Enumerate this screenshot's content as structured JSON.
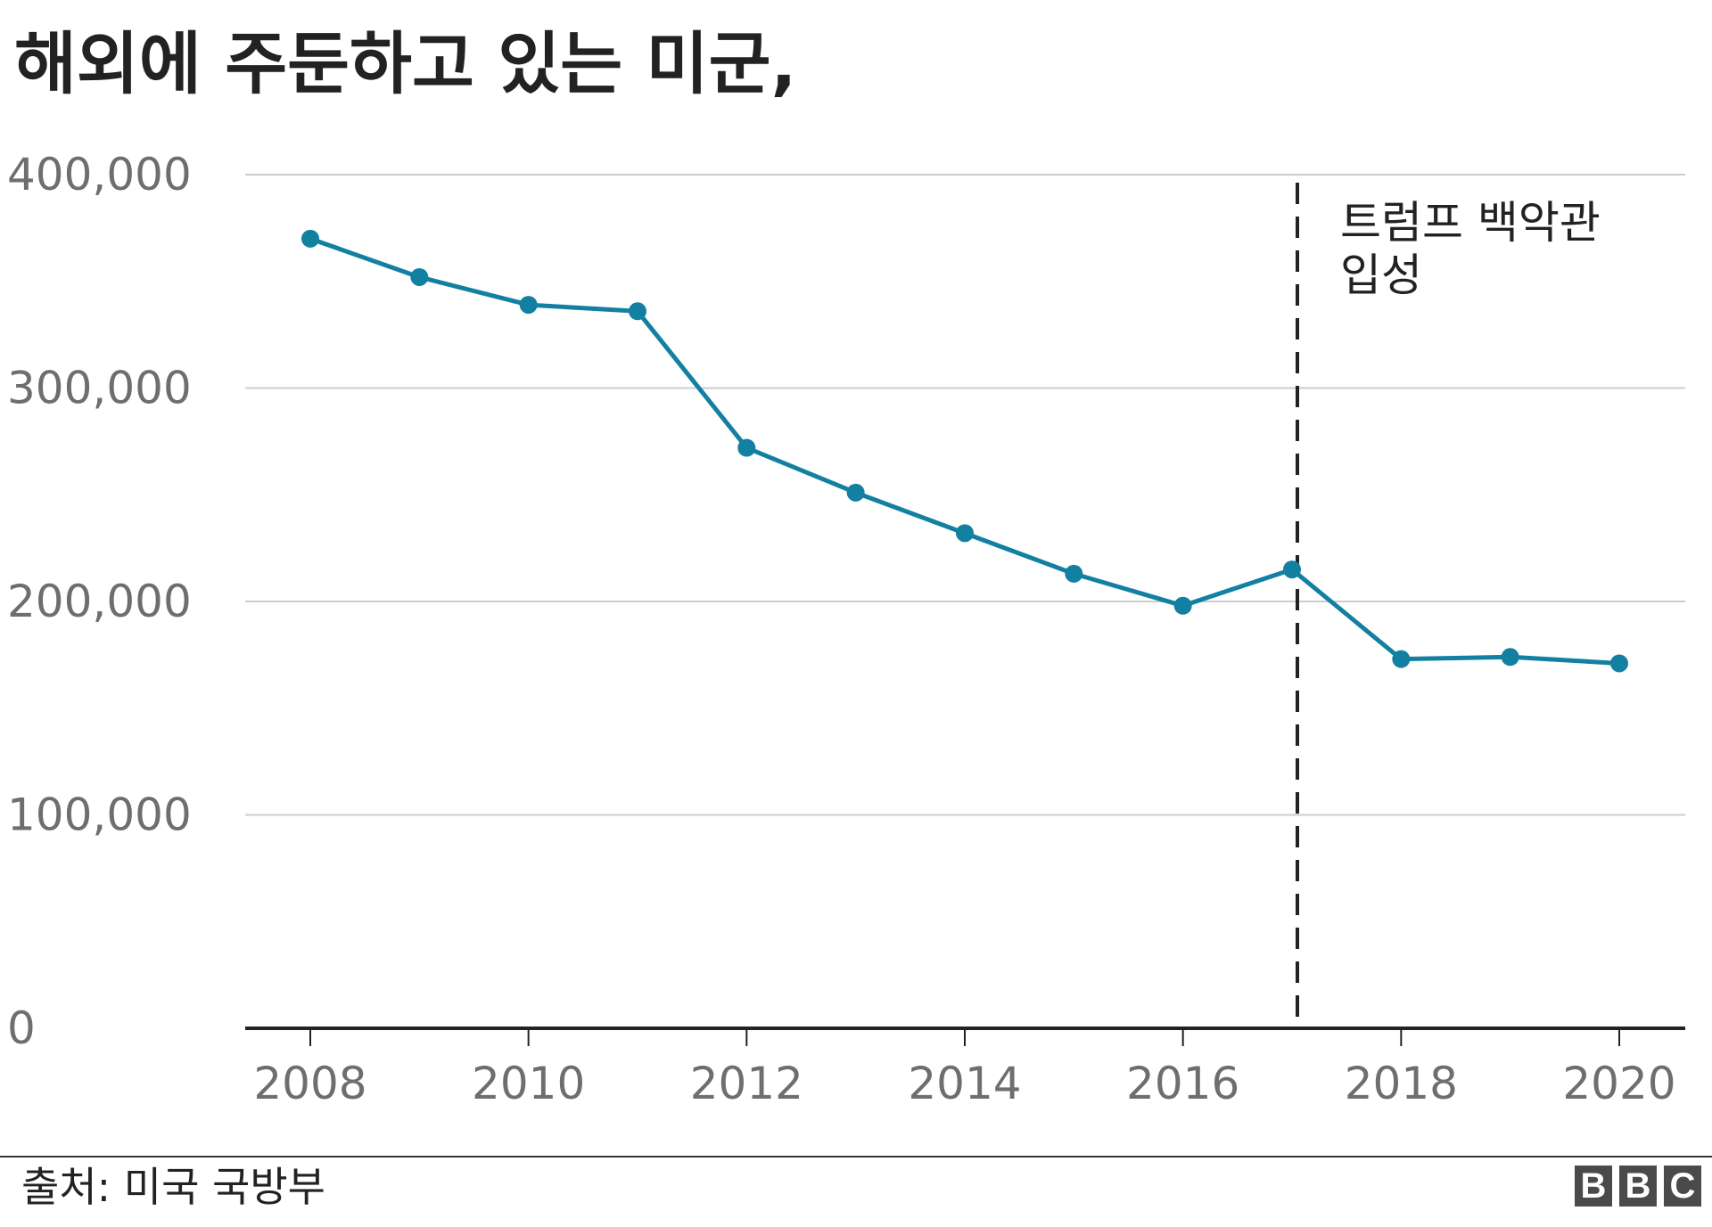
{
  "title": "해외에 주둔하고 있는 미군,",
  "source": "출처: 미국 국방부",
  "logo": [
    "B",
    "B",
    "C"
  ],
  "colors": {
    "line": "#1380A1",
    "grid": "#cccccc",
    "axis": "#222222",
    "tick_text": "#6e6e6e",
    "annotation_line": "#222222"
  },
  "chart_data": {
    "type": "line",
    "title": "해외에 주둔하고 있는 미군,",
    "xlabel": "",
    "ylabel": "",
    "x": [
      2008,
      2009,
      2010,
      2011,
      2012,
      2013,
      2014,
      2015,
      2016,
      2017,
      2018,
      2019,
      2020
    ],
    "series": [
      {
        "values": [
          370000,
          352000,
          339000,
          336000,
          272000,
          251000,
          232000,
          213000,
          198000,
          215000,
          173000,
          174000,
          171000
        ]
      }
    ],
    "xlim": [
      2008,
      2020
    ],
    "ylim": [
      0,
      400000
    ],
    "x_ticks": [
      "2008",
      "2010",
      "2012",
      "2014",
      "2016",
      "2018",
      "2020"
    ],
    "y_ticks": [
      "0",
      "100,000",
      "200,000",
      "300,000",
      "400,000"
    ],
    "grid": "horizontal",
    "markers": true,
    "annotation": {
      "x": 2017,
      "lines": [
        "트럼프 백악관",
        "입성"
      ],
      "style": "dashed-vertical-line"
    }
  }
}
